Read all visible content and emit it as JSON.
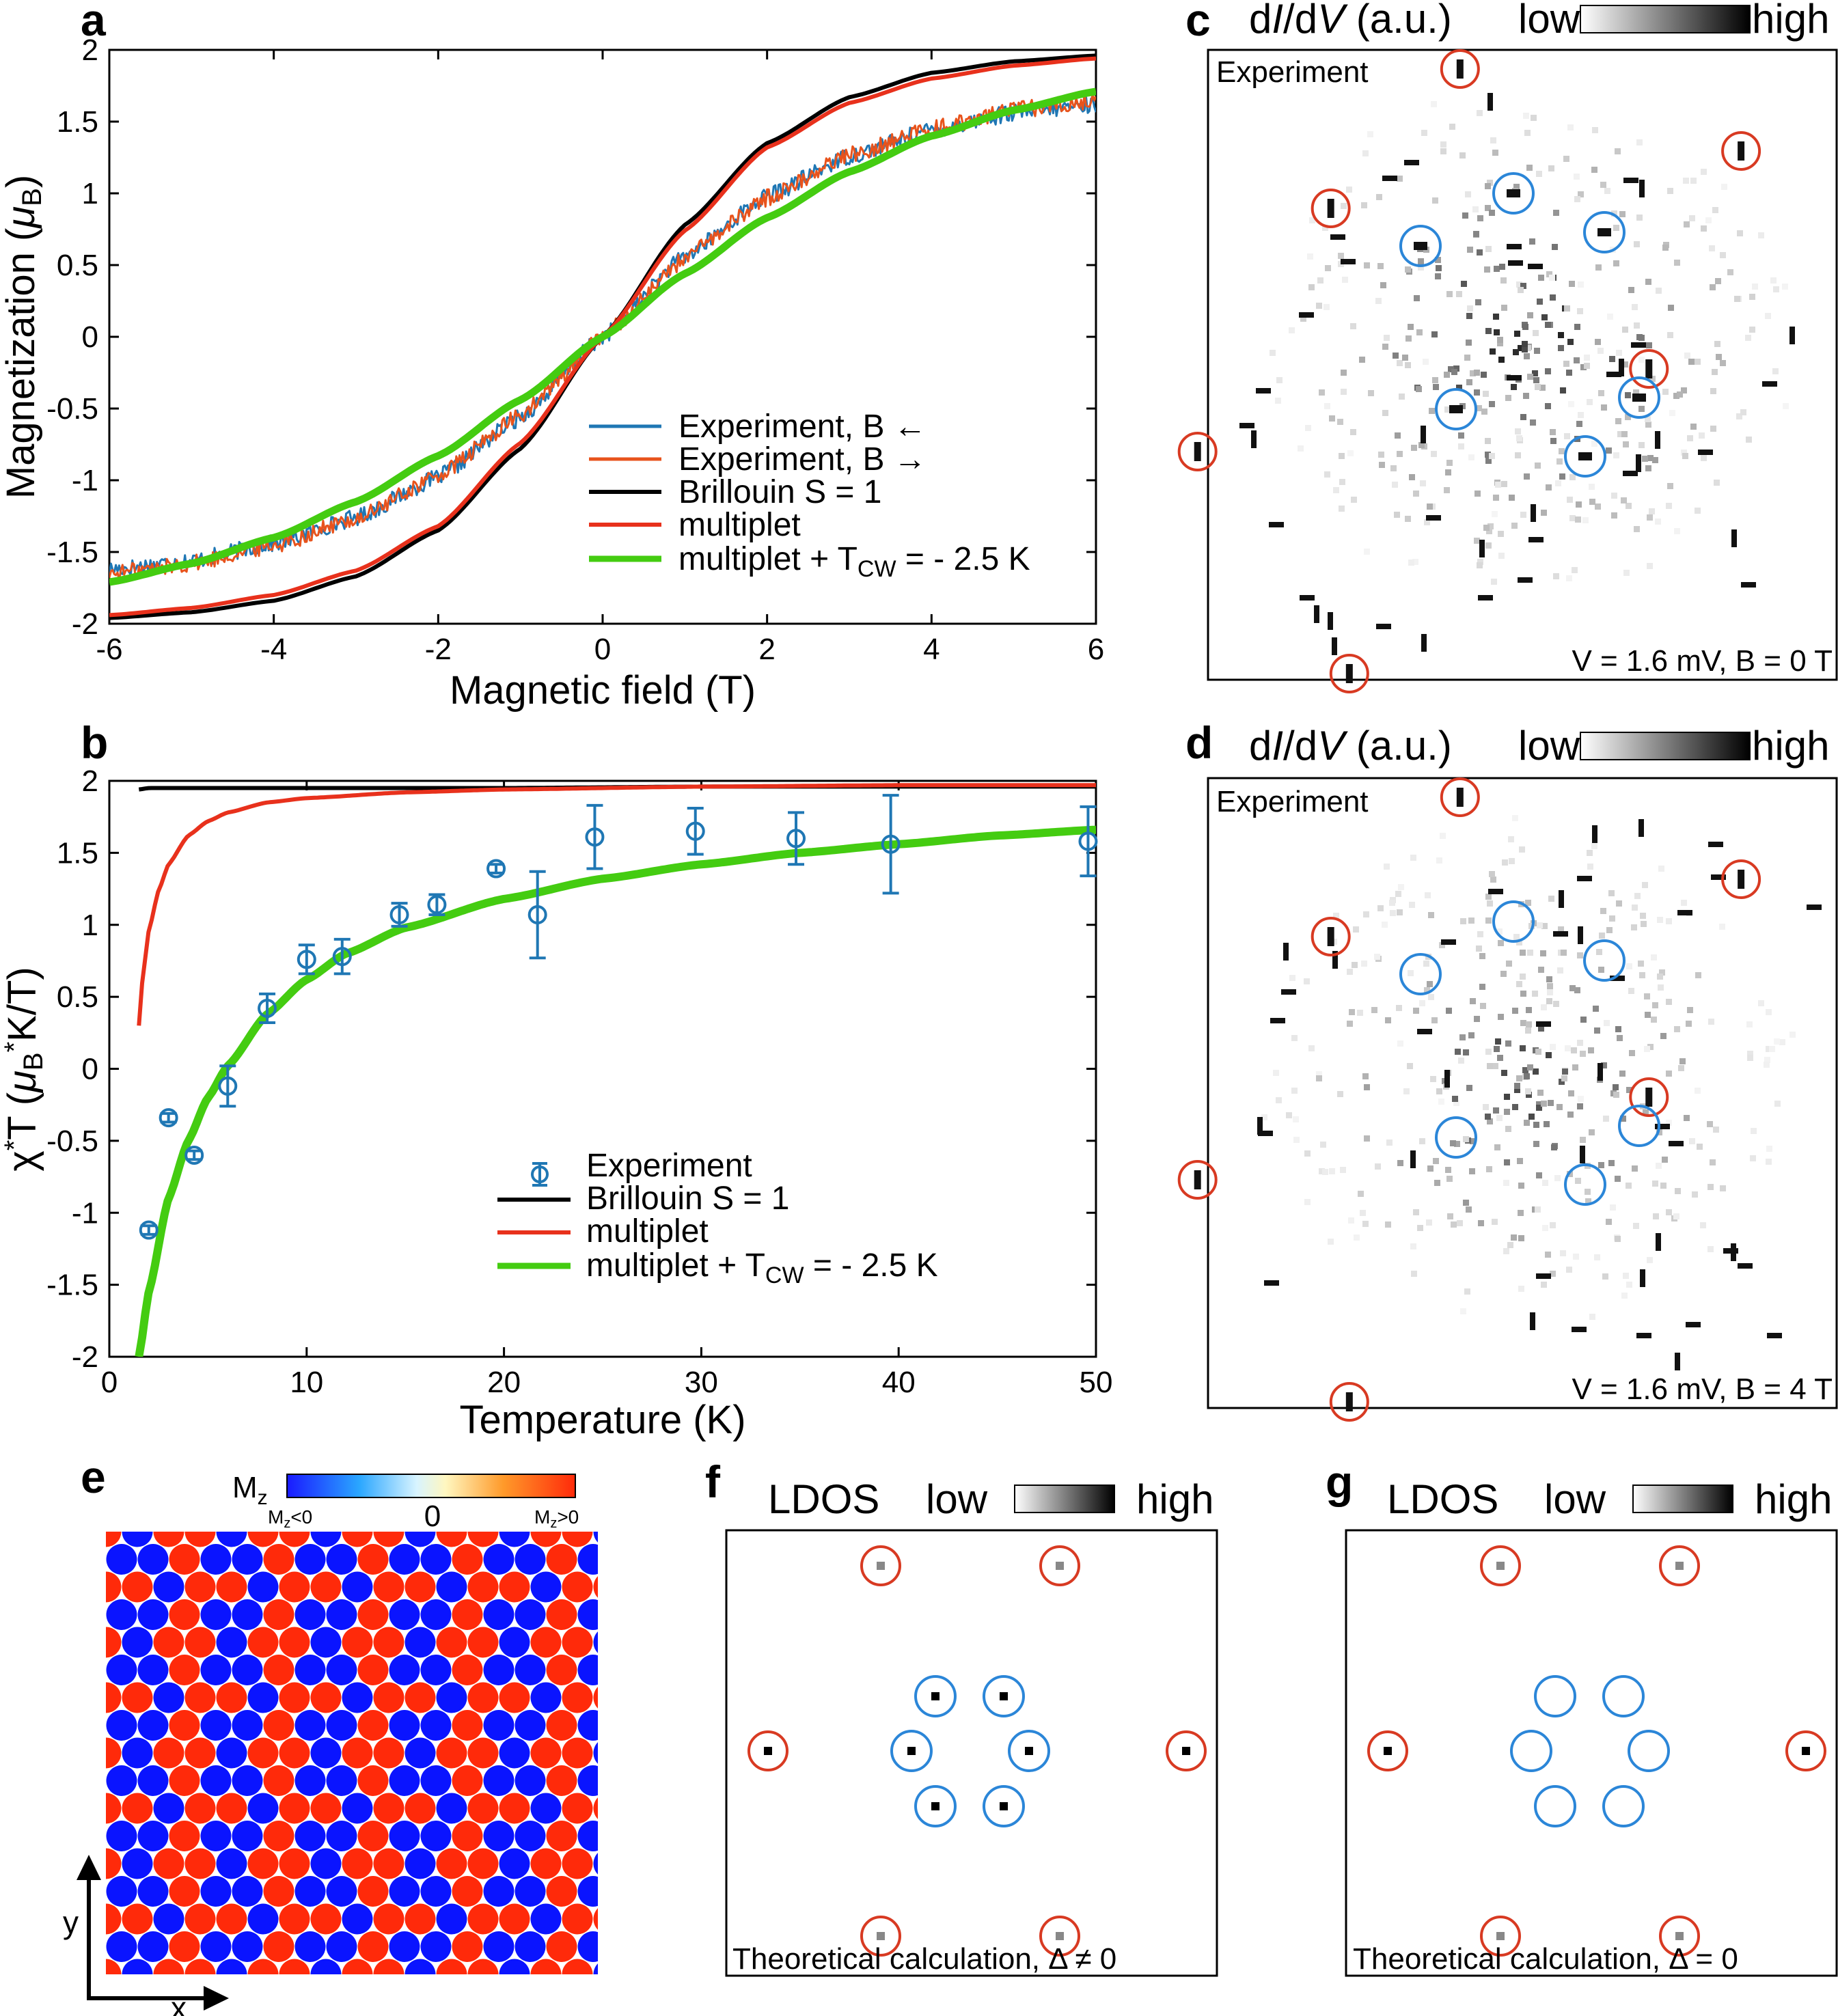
{
  "panels": {
    "a": "a",
    "b": "b",
    "c": "c",
    "d": "d",
    "e": "e",
    "f": "f",
    "g": "g"
  },
  "chart_data": [
    {
      "panel": "a",
      "type": "line",
      "xlabel": "Magnetic field (T)",
      "ylabel": "Magnetization (μB)",
      "xlim": [
        -6,
        6
      ],
      "ylim": [
        -2,
        2
      ],
      "xticks": [
        "-6",
        "-4",
        "-2",
        "0",
        "2",
        "4",
        "6"
      ],
      "yticks": [
        "2",
        "1.5",
        "1",
        "0.5",
        "0",
        "-0.5",
        "-1",
        "-1.5",
        "-2"
      ],
      "legend_position": "lower-right",
      "series": [
        {
          "name": "Experiment, B ←",
          "color": "#1f77b4",
          "x": [
            -6,
            -5,
            -4,
            -3,
            -2,
            -1,
            0,
            1,
            2,
            3,
            4,
            5,
            6
          ],
          "values": [
            -1.62,
            -1.56,
            -1.44,
            -1.26,
            -0.98,
            -0.56,
            0.0,
            0.56,
            0.98,
            1.26,
            1.44,
            1.56,
            1.62
          ]
        },
        {
          "name": "Experiment, B →",
          "color": "#e8531c",
          "x": [
            -6,
            -5,
            -4,
            -3,
            -2,
            -1,
            0,
            1,
            2,
            3,
            4,
            5,
            6
          ],
          "values": [
            -1.65,
            -1.58,
            -1.45,
            -1.27,
            -0.97,
            -0.55,
            0.0,
            0.55,
            0.97,
            1.27,
            1.45,
            1.58,
            1.65
          ]
        },
        {
          "name": "Brillouin S = 1",
          "color": "#000000",
          "x": [
            -6,
            -5,
            -4,
            -3,
            -2,
            -1,
            0,
            1,
            2,
            3,
            4,
            5,
            6
          ],
          "values": [
            -1.96,
            -1.92,
            -1.84,
            -1.67,
            -1.35,
            -0.78,
            0.0,
            0.78,
            1.35,
            1.67,
            1.84,
            1.92,
            1.96
          ]
        },
        {
          "name": "multiplet",
          "color": "#e8311c",
          "x": [
            -6,
            -5,
            -4,
            -3,
            -2,
            -1,
            0,
            1,
            2,
            3,
            4,
            5,
            6
          ],
          "values": [
            -1.94,
            -1.89,
            -1.8,
            -1.63,
            -1.32,
            -0.74,
            0.0,
            0.74,
            1.32,
            1.63,
            1.8,
            1.89,
            1.94
          ]
        },
        {
          "name": "multiplet + T CW = - 2.5 K",
          "color": "#44cc11",
          "x": [
            -6,
            -5,
            -4,
            -3,
            -2,
            -1,
            0,
            1,
            2,
            3,
            4,
            5,
            6
          ],
          "values": [
            -1.71,
            -1.58,
            -1.4,
            -1.15,
            -0.83,
            -0.44,
            0.0,
            0.44,
            0.83,
            1.15,
            1.4,
            1.58,
            1.71
          ]
        }
      ],
      "legend": [
        "Experiment, B ←",
        "Experiment, B →",
        "Brillouin S = 1",
        "multiplet",
        "multiplet + T",
        "CW",
        " = - 2.5 K"
      ]
    },
    {
      "panel": "b",
      "type": "line",
      "xlabel": "Temperature (K)",
      "ylabel": "χ*T (μB*K/T)",
      "xlim": [
        0,
        50
      ],
      "ylim": [
        -2,
        2
      ],
      "xticks": [
        "0",
        "10",
        "20",
        "30",
        "40",
        "50"
      ],
      "yticks": [
        "2",
        "1.5",
        "1",
        "0.5",
        "0",
        "-0.5",
        "-1",
        "-1.5",
        "-2"
      ],
      "legend_position": "lower-right",
      "experiment": {
        "name": "Experiment",
        "color": "#1f77b4",
        "x": [
          2.0,
          3.0,
          4.3,
          6.0,
          8.0,
          10.0,
          11.8,
          14.7,
          16.6,
          19.6,
          21.7,
          24.6,
          29.7,
          34.8,
          39.6,
          49.6
        ],
        "values": [
          -1.12,
          -0.34,
          -0.6,
          -0.12,
          0.42,
          0.76,
          0.78,
          1.07,
          1.14,
          1.39,
          1.07,
          1.61,
          1.65,
          1.6,
          1.56,
          1.58
        ],
        "err": [
          0.03,
          0.03,
          0.03,
          0.14,
          0.1,
          0.1,
          0.12,
          0.08,
          0.07,
          0.03,
          0.3,
          0.22,
          0.16,
          0.18,
          0.34,
          0.24
        ]
      },
      "series": [
        {
          "name": "Brillouin S = 1",
          "color": "#000000",
          "x": [
            1.5,
            2,
            3,
            5,
            10,
            20,
            30,
            40,
            50
          ],
          "values": [
            1.94,
            1.95,
            1.95,
            1.95,
            1.95,
            1.95,
            1.96,
            1.96,
            1.96
          ]
        },
        {
          "name": "multiplet",
          "color": "#e8311c",
          "x": [
            1.5,
            1.7,
            2,
            2.5,
            3,
            4,
            5,
            6,
            8,
            10,
            15,
            20,
            30,
            40,
            50
          ],
          "values": [
            0.3,
            0.65,
            0.96,
            1.24,
            1.42,
            1.62,
            1.72,
            1.78,
            1.85,
            1.88,
            1.92,
            1.94,
            1.96,
            1.97,
            1.97
          ]
        },
        {
          "name": "multiplet + T CW = - 2.5 K",
          "color": "#44cc11",
          "x": [
            1.5,
            2,
            3,
            4,
            5,
            6,
            8,
            10,
            12,
            15,
            20,
            25,
            30,
            35,
            40,
            45,
            50
          ],
          "values": [
            -2.0,
            -1.55,
            -0.9,
            -0.5,
            -0.2,
            0.02,
            0.38,
            0.62,
            0.8,
            0.98,
            1.18,
            1.32,
            1.42,
            1.5,
            1.56,
            1.62,
            1.66
          ]
        }
      ],
      "legend": [
        "Experiment",
        "Brillouin S = 1",
        "multiplet",
        "multiplet + T",
        "CW",
        " = - 2.5 K"
      ]
    }
  ],
  "colorbar_top": {
    "label_d": "d",
    "label_I": "I",
    "label_slash": "/d",
    "label_V": "V",
    "label_units": " (a.u.)",
    "low": "low",
    "high": "high"
  },
  "map_c": {
    "corner": "Experiment",
    "note": "V = 1.6 mV,  B = 0 T"
  },
  "map_d": {
    "corner": "Experiment",
    "note": "V = 1.6 mV,  B = 4 T"
  },
  "panel_e": {
    "title": "M",
    "title_sub": "z",
    "neg": "M",
    "neg_sub": "z",
    "neg_tail": "<0",
    "zero": "0",
    "pos": "M",
    "pos_sub": "z",
    "pos_tail": ">0",
    "axis_y": "y",
    "axis_x": "x",
    "color_pos": "#ff2a0a",
    "color_neg": "#0a14ff"
  },
  "panel_f": {
    "title": "LDOS",
    "low": "low",
    "high": "high",
    "note": "Theoretical calculation, Δ ≠ 0"
  },
  "panel_g": {
    "title": "LDOS",
    "low": "low",
    "high": "high",
    "note": "Theoretical calculation, Δ = 0"
  },
  "colors": {
    "red_ring": "#d83a22",
    "blue_ring": "#2b86d8"
  }
}
